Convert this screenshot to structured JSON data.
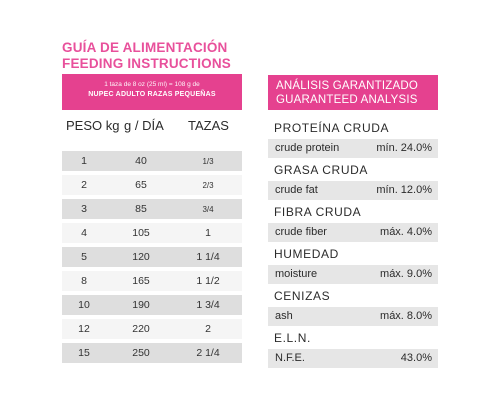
{
  "feeding": {
    "title_es": "GUÍA DE ALIMENTACIÓN",
    "title_en": "FEEDING INSTRUCTIONS",
    "banner_note": "1 taza de 8 oz (25 ml) = 108 g de",
    "banner_product": "NUPEC ADULTO RAZAS PEQUEÑAS",
    "headers": {
      "peso": "PESO kg",
      "gdia": "g / DÍA",
      "tazas": "TAZAS"
    },
    "rows": [
      {
        "peso": "1",
        "g": "40",
        "tazas": "1/3"
      },
      {
        "peso": "2",
        "g": "65",
        "tazas": "2/3"
      },
      {
        "peso": "3",
        "g": "85",
        "tazas": "3/4"
      },
      {
        "peso": "4",
        "g": "105",
        "tazas": "1"
      },
      {
        "peso": "5",
        "g": "120",
        "tazas": "1 1/4"
      },
      {
        "peso": "8",
        "g": "165",
        "tazas": "1 1/2"
      },
      {
        "peso": "10",
        "g": "190",
        "tazas": "1 3/4"
      },
      {
        "peso": "12",
        "g": "220",
        "tazas": "2"
      },
      {
        "peso": "15",
        "g": "250",
        "tazas": "2 1/4"
      }
    ]
  },
  "analysis": {
    "title_es": "ANÁLISIS GARANTIZADO",
    "title_en": "GUARANTEED ANALYSIS",
    "items": [
      {
        "label": "PROTEÍNA CRUDA",
        "key": "crude protein",
        "value": "mín. 24.0%"
      },
      {
        "label": "GRASA CRUDA",
        "key": "crude fat",
        "value": "mín. 12.0%"
      },
      {
        "label": "FIBRA CRUDA",
        "key": "crude fiber",
        "value": "máx. 4.0%"
      },
      {
        "label": "HUMEDAD",
        "key": "moisture",
        "value": "máx. 9.0%"
      },
      {
        "label": "CENIZAS",
        "key": "ash",
        "value": "máx. 8.0%"
      }
    ],
    "eln_label": "E.L.N.",
    "nfe_key": "N.F.E.",
    "nfe_value": "43.0%"
  },
  "colors": {
    "accent": "#e5418f",
    "title_pink": "#e8509b",
    "row_dark": "#dedede",
    "row_light": "#f5f5f5"
  }
}
